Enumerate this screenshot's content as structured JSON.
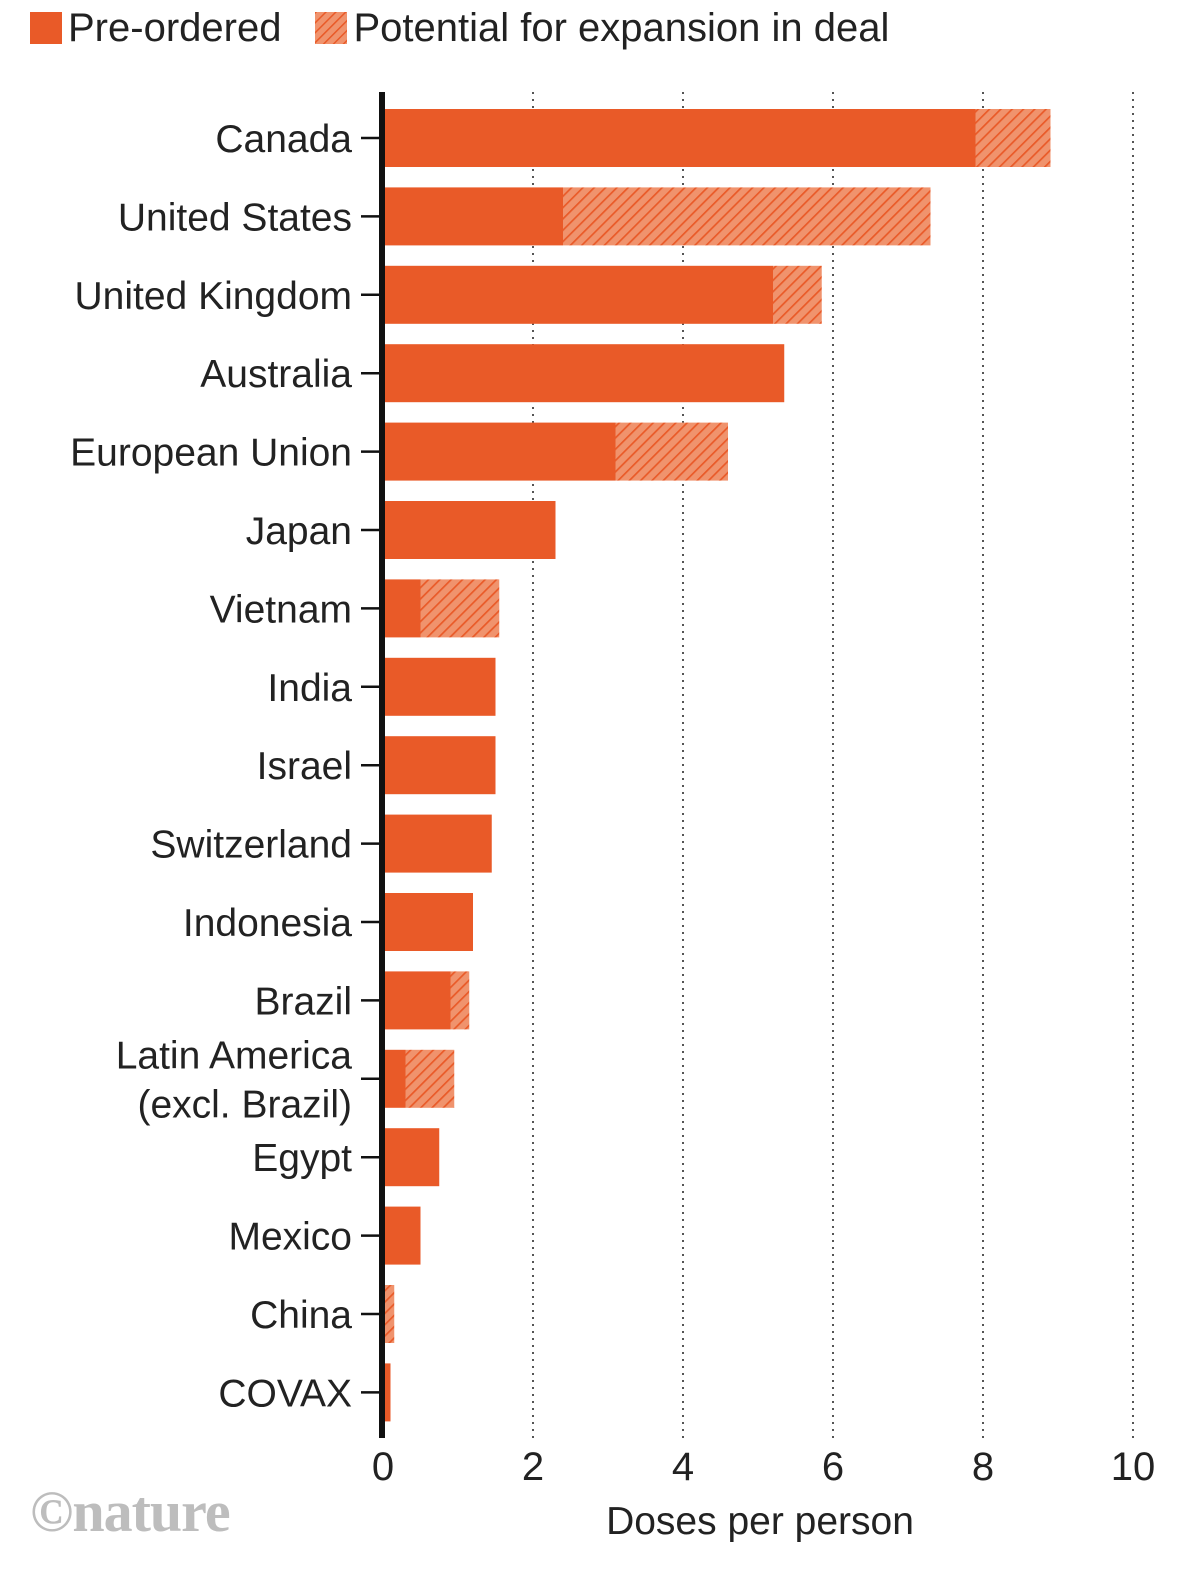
{
  "colors": {
    "pre_ordered": "#e95a28",
    "expansion_hatch": "#f0936d",
    "axis": "#111111",
    "grid": "#555555",
    "logo": "#bdbdbd"
  },
  "legend": {
    "pre_ordered": "Pre-ordered",
    "expansion": "Potential for expansion in deal"
  },
  "logo": {
    "copyright": "©",
    "wordmark": "nature"
  },
  "chart_data": {
    "type": "bar",
    "orientation": "horizontal",
    "stacked": true,
    "xlabel": "Doses per person",
    "xlim": [
      0,
      10
    ],
    "xticks": [
      0,
      2,
      4,
      6,
      8,
      10
    ],
    "grid": "vertical dotted",
    "legend_position": "top-left",
    "categories": [
      [
        "Canada"
      ],
      [
        "United States"
      ],
      [
        "United Kingdom"
      ],
      [
        "Australia"
      ],
      [
        "European Union"
      ],
      [
        "Japan"
      ],
      [
        "Vietnam"
      ],
      [
        "India"
      ],
      [
        "Israel"
      ],
      [
        "Switzerland"
      ],
      [
        "Indonesia"
      ],
      [
        "Brazil"
      ],
      [
        "Latin America",
        "(excl. Brazil)"
      ],
      [
        "Egypt"
      ],
      [
        "Mexico"
      ],
      [
        "China"
      ],
      [
        "COVAX"
      ]
    ],
    "series": [
      {
        "name": "Pre-ordered",
        "values": [
          7.9,
          2.4,
          5.2,
          5.35,
          3.1,
          2.3,
          0.5,
          1.5,
          1.5,
          1.45,
          1.2,
          0.9,
          0.3,
          0.75,
          0.5,
          0.0,
          0.1
        ]
      },
      {
        "name": "Potential for expansion in deal",
        "values": [
          1.0,
          4.9,
          0.65,
          0.0,
          1.5,
          0.0,
          1.05,
          0.0,
          0.0,
          0.0,
          0.0,
          0.25,
          0.65,
          0.0,
          0.0,
          0.15,
          0.0
        ]
      }
    ]
  }
}
